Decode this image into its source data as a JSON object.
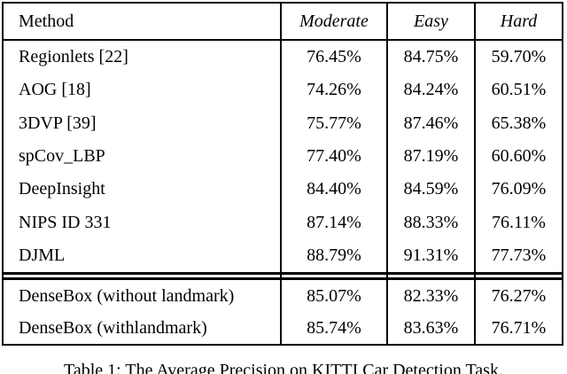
{
  "table": {
    "headers": {
      "method": "Method",
      "moderate": "Moderate",
      "easy": "Easy",
      "hard": "Hard"
    },
    "rows": [
      {
        "method": "Regionlets [22]",
        "moderate": "76.45%",
        "easy": "84.75%",
        "hard": "59.70%"
      },
      {
        "method": "AOG [18]",
        "moderate": "74.26%",
        "easy": "84.24%",
        "hard": "60.51%"
      },
      {
        "method": "3DVP [39]",
        "moderate": "75.77%",
        "easy": "87.46%",
        "hard": "65.38%"
      },
      {
        "method": "spCov_LBP",
        "moderate": "77.40%",
        "easy": "87.19%",
        "hard": "60.60%"
      },
      {
        "method": "DeepInsight",
        "moderate": "84.40%",
        "easy": "84.59%",
        "hard": "76.09%"
      },
      {
        "method": "NIPS ID 331",
        "moderate": "87.14%",
        "easy": "88.33%",
        "hard": "76.11%"
      },
      {
        "method": "DJML",
        "moderate": "88.79%",
        "easy": "91.31%",
        "hard": "77.73%"
      },
      {
        "method": "DenseBox (without landmark)",
        "moderate": "85.07%",
        "easy": "82.33%",
        "hard": "76.27%"
      },
      {
        "method": "DenseBox (withlandmark)",
        "moderate": "85.74%",
        "easy": "83.63%",
        "hard": "76.71%"
      }
    ],
    "caption": "Table 1: The Average Precision on KITTI Car Detection Task."
  },
  "colors": {
    "background": "#ffffff",
    "border": "#000000",
    "text": "#000000"
  }
}
